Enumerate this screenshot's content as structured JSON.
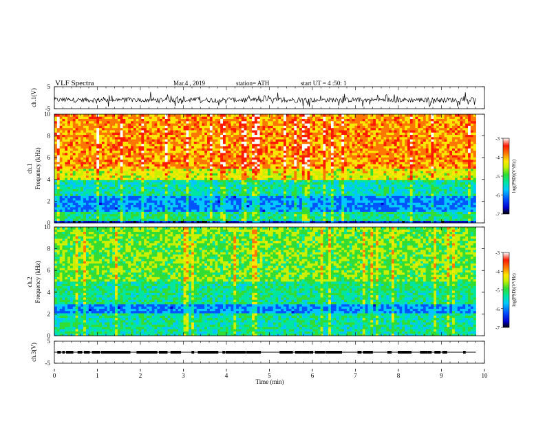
{
  "header": {
    "title": "VLF Spectra",
    "date": "Mar.4 , 2019",
    "station": "station= ATH",
    "start": "start UT = 4 :50: 1"
  },
  "chart_data": [
    {
      "type": "line",
      "panel": "ch1-waveform",
      "ylabel": "ch.1(V)",
      "ylim": [
        -5,
        5
      ],
      "yticks": [
        "5",
        "-5"
      ],
      "xlim": [
        0,
        10
      ],
      "series": [
        {
          "values_description": "",
          "x": [
            0,
            9.8
          ],
          "y_center": -1,
          "y_range": [
            -4,
            3
          ]
        }
      ]
    },
    {
      "type": "heatmap",
      "panel": "ch1-spectrogram",
      "ylabel": "ch.1\nFrequency (kHz)",
      "ylabel_lines": [
        "ch.1",
        "Frequency (kHz)"
      ],
      "ylim": [
        0,
        10
      ],
      "yticks": [
        "0",
        "2",
        "4",
        "6",
        "8",
        "10"
      ],
      "xlim": [
        0,
        10
      ],
      "data_xmax": 9.8,
      "bands": [
        {
          "f0": 0.0,
          "f1": 0.3,
          "level": -6.5
        },
        {
          "f0": 0.3,
          "f1": 1.0,
          "level": -5.2
        },
        {
          "f0": 1.0,
          "f1": 2.5,
          "level": -6.0
        },
        {
          "f0": 2.5,
          "f1": 4.0,
          "level": -5.4
        },
        {
          "f0": 4.0,
          "f1": 5.0,
          "level": -4.4
        },
        {
          "f0": 5.0,
          "f1": 10.0,
          "level": -3.9
        }
      ],
      "colorbar": {
        "label": "log(PSD)(V²/Hz)",
        "ticks": [
          "-3",
          "-4",
          "-5",
          "-6",
          "-7"
        ],
        "range": [
          -7,
          -3
        ]
      }
    },
    {
      "type": "heatmap",
      "panel": "ch2-spectrogram",
      "ylabel": "ch.2\nFrequency (kHz)",
      "ylabel_lines": [
        "ch.2",
        "Frequency (kHz)"
      ],
      "ylim": [
        0,
        10
      ],
      "yticks": [
        "0",
        "2",
        "4",
        "6",
        "8",
        "10"
      ],
      "xlim": [
        0,
        10
      ],
      "data_xmax": 9.8,
      "bands": [
        {
          "f0": 0.0,
          "f1": 2.0,
          "level": -5.3
        },
        {
          "f0": 2.0,
          "f1": 3.0,
          "level": -6.0
        },
        {
          "f0": 3.0,
          "f1": 5.0,
          "level": -5.2
        },
        {
          "f0": 5.0,
          "f1": 10.0,
          "level": -4.8
        }
      ],
      "colorbar": {
        "label": "log(PSD)(V²/Hz)",
        "ticks": [
          "-3",
          "-4",
          "-5",
          "-6",
          "-7"
        ],
        "range": [
          -7,
          -3
        ]
      }
    },
    {
      "type": "line",
      "panel": "ch3-waveform",
      "ylabel": "ch.3(V)",
      "ylim": [
        -5,
        5
      ],
      "yticks": [
        "5",
        "-5"
      ],
      "xlim": [
        0,
        10
      ],
      "series": [
        {
          "x": [
            0,
            9.8
          ],
          "y": [
            0,
            0
          ]
        }
      ]
    }
  ],
  "xaxis": {
    "label": "Time (min)",
    "ticks": [
      "0",
      "1",
      "2",
      "3",
      "4",
      "5",
      "6",
      "7",
      "8",
      "9",
      "10"
    ]
  },
  "colors": {
    "colormap": [
      "#000000",
      "#0000cc",
      "#0055ff",
      "#00c8ff",
      "#00e6a0",
      "#33dd33",
      "#c8f000",
      "#ffe600",
      "#ff7700",
      "#ff1a00",
      "#ffffff"
    ]
  }
}
